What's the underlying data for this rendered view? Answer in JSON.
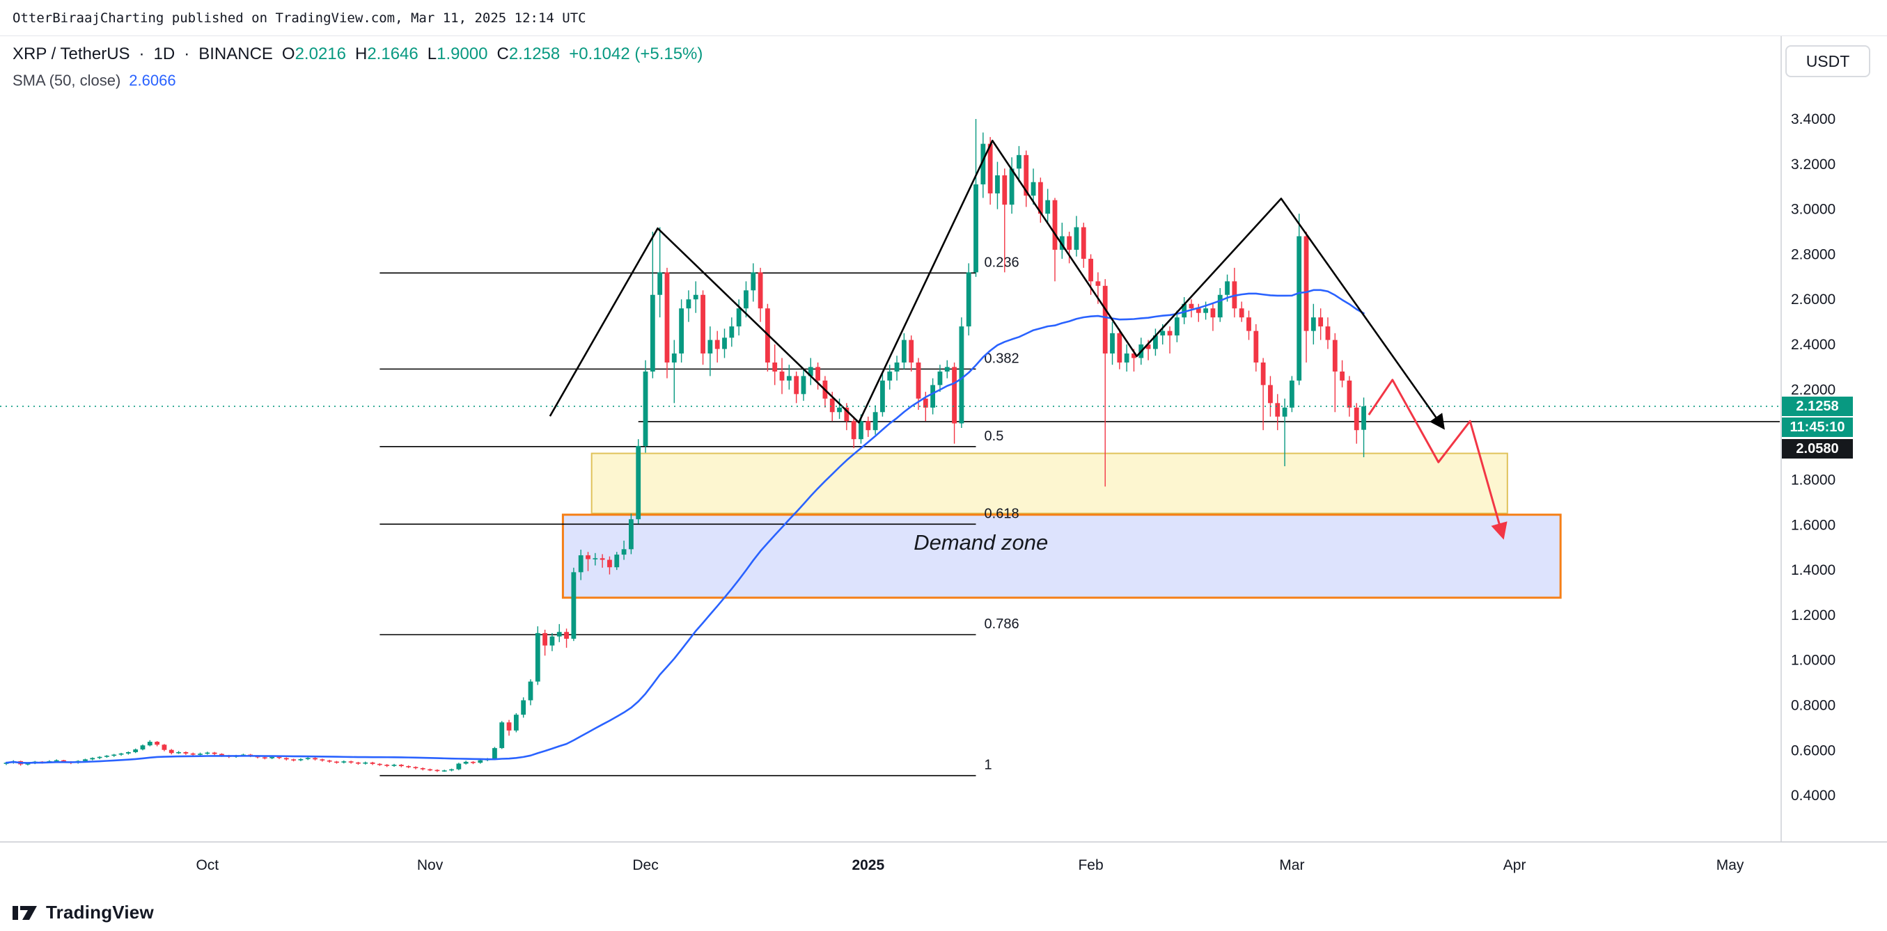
{
  "meta": {
    "publish_line": "OtterBiraajCharting published on TradingView.com, Mar 11, 2025 12:14 UTC"
  },
  "header": {
    "symbol": "XRP / TetherUS",
    "sep": "·",
    "interval": "1D",
    "exchange": "BINANCE",
    "ohlc": {
      "o_label": "O",
      "o": "2.0216",
      "h_label": "H",
      "h": "2.1646",
      "l_label": "L",
      "l": "1.9000",
      "c_label": "C",
      "c": "2.1258",
      "change": "+0.1042 (+5.15%)"
    },
    "indicator": {
      "name": "SMA (50, close)",
      "value": "2.6066"
    },
    "currency_button": "USDT"
  },
  "footer": {
    "brand": "TradingView"
  },
  "colors": {
    "candle_up": "#089981",
    "candle_down": "#F23645",
    "sma": "#2962FF",
    "axis_text": "#131722",
    "level_label_bg": "#15181c",
    "fib_line": "#000000",
    "trend_line": "#000000",
    "zone_yellow_fill": "rgba(250,228,120,0.35)",
    "zone_yellow_border": "#e0c25a",
    "zone_blue_fill": "rgba(98,128,245,0.22)",
    "zone_blue_border": "#f57f17"
  },
  "chart_data": {
    "type": "candlestick",
    "symbol": "XRP/USDT",
    "interval": "1D",
    "start_date": "2024-09-03",
    "sma_period": 50,
    "price_axis": {
      "min": 0.4,
      "max": 3.4,
      "ticks": [
        "3.4000",
        "3.2000",
        "3.0000",
        "2.8000",
        "2.6000",
        "2.4000",
        "2.2000",
        "1.8000",
        "1.6000",
        "1.4000",
        "1.2000",
        "1.0000",
        "0.8000",
        "0.6000",
        "0.4000"
      ]
    },
    "time_axis": [
      {
        "label": "Oct",
        "index": 28
      },
      {
        "label": "Nov",
        "index": 59
      },
      {
        "label": "Dec",
        "index": 89
      },
      {
        "label": "2025",
        "index": 120,
        "bold": true
      },
      {
        "label": "Feb",
        "index": 151
      },
      {
        "label": "Mar",
        "index": 179
      },
      {
        "label": "Apr",
        "index": 210
      },
      {
        "label": "May",
        "index": 240
      }
    ],
    "current_price": {
      "value": "2.1258",
      "price": 2.1258,
      "countdown": "11:45:10"
    },
    "level_line": {
      "value": "2.0580",
      "price": 2.058,
      "start_index": 88,
      "end_index": 247
    },
    "fib": {
      "start_index": 52,
      "end_index": 135,
      "levels": [
        {
          "label": "0.236",
          "price": 2.717
        },
        {
          "label": "0.382",
          "price": 2.291
        },
        {
          "label": "0.5",
          "price": 1.947
        },
        {
          "label": "0.618",
          "price": 1.603
        },
        {
          "label": "0.786",
          "price": 1.113
        },
        {
          "label": "1",
          "price": 0.488
        }
      ]
    },
    "zones": [
      {
        "name": "yellow-zone",
        "start_index": 81.5,
        "end_index": 209,
        "price_top": 1.917,
        "price_bottom": 1.651,
        "fill": "rgba(250,228,120,0.35)",
        "border": "#e0c25a",
        "border_width": 2
      },
      {
        "name": "demand-zone",
        "start_index": 77.5,
        "end_index": 216.4,
        "price_top": 1.645,
        "price_bottom": 1.277,
        "fill": "rgba(98,128,245,0.22)",
        "border": "#f57f17",
        "border_width": 3,
        "label": "Demand zone",
        "label_index": 135.7,
        "label_price": 1.49
      }
    ],
    "trendline": {
      "points": [
        {
          "i": 75.7,
          "p": 2.082
        },
        {
          "i": 90.7,
          "p": 2.915
        },
        {
          "i": 118.7,
          "p": 2.054
        },
        {
          "i": 137.3,
          "p": 3.304
        },
        {
          "i": 157.4,
          "p": 2.348
        },
        {
          "i": 177.5,
          "p": 3.047
        },
        {
          "i": 200.1,
          "p": 2.03
        }
      ]
    },
    "projection": {
      "points": [
        {
          "i": 189.7,
          "p": 2.088
        },
        {
          "i": 193.0,
          "p": 2.243
        },
        {
          "i": 199.4,
          "p": 1.878
        },
        {
          "i": 203.8,
          "p": 2.06
        },
        {
          "i": 208.4,
          "p": 1.545
        }
      ]
    },
    "candles": [
      [
        0.54,
        0.549,
        0.535,
        0.545
      ],
      [
        0.545,
        0.556,
        0.541,
        0.552
      ],
      [
        0.552,
        0.554,
        0.532,
        0.538
      ],
      [
        0.538,
        0.547,
        0.533,
        0.542
      ],
      [
        0.542,
        0.553,
        0.539,
        0.55
      ],
      [
        0.55,
        0.552,
        0.541,
        0.546
      ],
      [
        0.546,
        0.556,
        0.543,
        0.552
      ],
      [
        0.552,
        0.56,
        0.548,
        0.556
      ],
      [
        0.556,
        0.558,
        0.544,
        0.549
      ],
      [
        0.549,
        0.552,
        0.539,
        0.544
      ],
      [
        0.544,
        0.556,
        0.541,
        0.553
      ],
      [
        0.553,
        0.563,
        0.55,
        0.56
      ],
      [
        0.56,
        0.569,
        0.556,
        0.566
      ],
      [
        0.566,
        0.574,
        0.561,
        0.571
      ],
      [
        0.571,
        0.579,
        0.567,
        0.576
      ],
      [
        0.576,
        0.584,
        0.571,
        0.581
      ],
      [
        0.581,
        0.589,
        0.576,
        0.586
      ],
      [
        0.586,
        0.595,
        0.581,
        0.592
      ],
      [
        0.592,
        0.608,
        0.588,
        0.604
      ],
      [
        0.604,
        0.626,
        0.6,
        0.622
      ],
      [
        0.622,
        0.645,
        0.618,
        0.638
      ],
      [
        0.638,
        0.641,
        0.618,
        0.625
      ],
      [
        0.625,
        0.628,
        0.596,
        0.602
      ],
      [
        0.602,
        0.606,
        0.582,
        0.588
      ],
      [
        0.588,
        0.597,
        0.584,
        0.592
      ],
      [
        0.592,
        0.595,
        0.58,
        0.586
      ],
      [
        0.586,
        0.59,
        0.575,
        0.581
      ],
      [
        0.581,
        0.59,
        0.577,
        0.585
      ],
      [
        0.585,
        0.594,
        0.581,
        0.59
      ],
      [
        0.59,
        0.593,
        0.579,
        0.584
      ],
      [
        0.584,
        0.587,
        0.571,
        0.576
      ],
      [
        0.576,
        0.58,
        0.566,
        0.571
      ],
      [
        0.571,
        0.58,
        0.567,
        0.576
      ],
      [
        0.576,
        0.585,
        0.572,
        0.581
      ],
      [
        0.581,
        0.584,
        0.57,
        0.575
      ],
      [
        0.575,
        0.578,
        0.564,
        0.569
      ],
      [
        0.569,
        0.572,
        0.56,
        0.565
      ],
      [
        0.565,
        0.575,
        0.561,
        0.571
      ],
      [
        0.571,
        0.574,
        0.561,
        0.566
      ],
      [
        0.566,
        0.569,
        0.555,
        0.56
      ],
      [
        0.56,
        0.563,
        0.551,
        0.556
      ],
      [
        0.556,
        0.565,
        0.552,
        0.561
      ],
      [
        0.561,
        0.57,
        0.557,
        0.566
      ],
      [
        0.566,
        0.569,
        0.555,
        0.56
      ],
      [
        0.56,
        0.563,
        0.55,
        0.555
      ],
      [
        0.555,
        0.558,
        0.545,
        0.55
      ],
      [
        0.55,
        0.553,
        0.541,
        0.546
      ],
      [
        0.546,
        0.555,
        0.542,
        0.551
      ],
      [
        0.551,
        0.554,
        0.541,
        0.546
      ],
      [
        0.546,
        0.549,
        0.536,
        0.541
      ],
      [
        0.541,
        0.55,
        0.537,
        0.546
      ],
      [
        0.546,
        0.549,
        0.535,
        0.54
      ],
      [
        0.54,
        0.543,
        0.531,
        0.536
      ],
      [
        0.536,
        0.539,
        0.526,
        0.531
      ],
      [
        0.531,
        0.54,
        0.527,
        0.536
      ],
      [
        0.536,
        0.539,
        0.525,
        0.53
      ],
      [
        0.53,
        0.533,
        0.521,
        0.526
      ],
      [
        0.526,
        0.529,
        0.516,
        0.521
      ],
      [
        0.521,
        0.524,
        0.511,
        0.516
      ],
      [
        0.516,
        0.519,
        0.508,
        0.513
      ],
      [
        0.513,
        0.516,
        0.504,
        0.509
      ],
      [
        0.509,
        0.514,
        0.505,
        0.511
      ],
      [
        0.511,
        0.519,
        0.507,
        0.516
      ],
      [
        0.516,
        0.545,
        0.512,
        0.541
      ],
      [
        0.541,
        0.554,
        0.537,
        0.549
      ],
      [
        0.549,
        0.552,
        0.539,
        0.545
      ],
      [
        0.545,
        0.559,
        0.541,
        0.556
      ],
      [
        0.556,
        0.566,
        0.552,
        0.561
      ],
      [
        0.561,
        0.615,
        0.557,
        0.61
      ],
      [
        0.61,
        0.73,
        0.606,
        0.724
      ],
      [
        0.724,
        0.735,
        0.665,
        0.688
      ],
      [
        0.688,
        0.765,
        0.68,
        0.758
      ],
      [
        0.758,
        0.835,
        0.745,
        0.822
      ],
      [
        0.822,
        0.915,
        0.8,
        0.905
      ],
      [
        0.905,
        1.15,
        0.89,
        1.12
      ],
      [
        1.12,
        1.135,
        1.02,
        1.065
      ],
      [
        1.065,
        1.12,
        1.04,
        1.105
      ],
      [
        1.105,
        1.16,
        1.08,
        1.125
      ],
      [
        1.125,
        1.14,
        1.055,
        1.095
      ],
      [
        1.095,
        1.41,
        1.085,
        1.39
      ],
      [
        1.39,
        1.49,
        1.355,
        1.465
      ],
      [
        1.465,
        1.48,
        1.395,
        1.448
      ],
      [
        1.448,
        1.475,
        1.42,
        1.452
      ],
      [
        1.452,
        1.47,
        1.41,
        1.445
      ],
      [
        1.445,
        1.46,
        1.38,
        1.412
      ],
      [
        1.412,
        1.48,
        1.4,
        1.468
      ],
      [
        1.468,
        1.53,
        1.445,
        1.492
      ],
      [
        1.492,
        1.65,
        1.47,
        1.625
      ],
      [
        1.625,
        1.98,
        1.605,
        1.95
      ],
      [
        1.95,
        2.33,
        1.92,
        2.28
      ],
      [
        2.28,
        2.9,
        2.25,
        2.62
      ],
      [
        2.62,
        2.92,
        2.52,
        2.72
      ],
      [
        2.72,
        2.74,
        2.25,
        2.32
      ],
      [
        2.32,
        2.42,
        2.14,
        2.36
      ],
      [
        2.36,
        2.6,
        2.32,
        2.56
      ],
      [
        2.56,
        2.64,
        2.5,
        2.6
      ],
      [
        2.6,
        2.68,
        2.54,
        2.62
      ],
      [
        2.62,
        2.64,
        2.31,
        2.36
      ],
      [
        2.36,
        2.48,
        2.26,
        2.42
      ],
      [
        2.42,
        2.46,
        2.32,
        2.38
      ],
      [
        2.38,
        2.47,
        2.34,
        2.43
      ],
      [
        2.43,
        2.52,
        2.39,
        2.48
      ],
      [
        2.48,
        2.6,
        2.44,
        2.56
      ],
      [
        2.56,
        2.68,
        2.52,
        2.64
      ],
      [
        2.64,
        2.76,
        2.59,
        2.72
      ],
      [
        2.72,
        2.74,
        2.5,
        2.56
      ],
      [
        2.56,
        2.58,
        2.28,
        2.32
      ],
      [
        2.32,
        2.4,
        2.22,
        2.28
      ],
      [
        2.28,
        2.34,
        2.18,
        2.24
      ],
      [
        2.24,
        2.31,
        2.2,
        2.26
      ],
      [
        2.26,
        2.28,
        2.14,
        2.18
      ],
      [
        2.18,
        2.29,
        2.15,
        2.26
      ],
      [
        2.26,
        2.34,
        2.22,
        2.3
      ],
      [
        2.3,
        2.32,
        2.2,
        2.24
      ],
      [
        2.24,
        2.26,
        2.12,
        2.16
      ],
      [
        2.16,
        2.19,
        2.06,
        2.1
      ],
      [
        2.1,
        2.16,
        2.07,
        2.12
      ],
      [
        2.12,
        2.14,
        2.02,
        2.06
      ],
      [
        2.06,
        2.08,
        1.94,
        1.98
      ],
      [
        1.98,
        2.09,
        1.96,
        2.06
      ],
      [
        2.06,
        2.08,
        1.99,
        2.02
      ],
      [
        2.02,
        2.13,
        2.0,
        2.1
      ],
      [
        2.1,
        2.27,
        2.08,
        2.24
      ],
      [
        2.24,
        2.31,
        2.2,
        2.28
      ],
      [
        2.28,
        2.35,
        2.24,
        2.32
      ],
      [
        2.32,
        2.45,
        2.29,
        2.42
      ],
      [
        2.42,
        2.44,
        2.28,
        2.32
      ],
      [
        2.32,
        2.34,
        2.11,
        2.16
      ],
      [
        2.16,
        2.19,
        2.06,
        2.12
      ],
      [
        2.12,
        2.25,
        2.09,
        2.22
      ],
      [
        2.22,
        2.31,
        2.19,
        2.28
      ],
      [
        2.28,
        2.33,
        2.25,
        2.3
      ],
      [
        2.3,
        2.32,
        1.96,
        2.05
      ],
      [
        2.05,
        2.52,
        2.03,
        2.48
      ],
      [
        2.48,
        2.76,
        2.44,
        2.72
      ],
      [
        2.72,
        3.4,
        2.7,
        3.11
      ],
      [
        3.11,
        3.34,
        3.05,
        3.29
      ],
      [
        3.29,
        3.32,
        3.02,
        3.07
      ],
      [
        3.07,
        3.21,
        3.0,
        3.15
      ],
      [
        3.15,
        3.18,
        2.72,
        3.02
      ],
      [
        3.02,
        3.23,
        2.98,
        3.18
      ],
      [
        3.18,
        3.28,
        3.12,
        3.24
      ],
      [
        3.24,
        3.26,
        3.01,
        3.06
      ],
      [
        3.06,
        3.18,
        3.02,
        3.12
      ],
      [
        3.12,
        3.14,
        2.94,
        2.98
      ],
      [
        2.98,
        3.09,
        2.94,
        3.04
      ],
      [
        3.04,
        3.05,
        2.68,
        2.82
      ],
      [
        2.82,
        2.94,
        2.78,
        2.88
      ],
      [
        2.88,
        2.9,
        2.76,
        2.82
      ],
      [
        2.82,
        2.97,
        2.79,
        2.92
      ],
      [
        2.92,
        2.94,
        2.74,
        2.78
      ],
      [
        2.78,
        2.8,
        2.62,
        2.68
      ],
      [
        2.68,
        2.72,
        2.58,
        2.66
      ],
      [
        2.66,
        2.69,
        1.77,
        2.36
      ],
      [
        2.36,
        2.5,
        2.31,
        2.45
      ],
      [
        2.45,
        2.47,
        2.29,
        2.32
      ],
      [
        2.32,
        2.4,
        2.28,
        2.36
      ],
      [
        2.36,
        2.38,
        2.28,
        2.34
      ],
      [
        2.34,
        2.43,
        2.31,
        2.4
      ],
      [
        2.4,
        2.42,
        2.33,
        2.38
      ],
      [
        2.38,
        2.47,
        2.35,
        2.44
      ],
      [
        2.44,
        2.49,
        2.4,
        2.46
      ],
      [
        2.46,
        2.48,
        2.36,
        2.44
      ],
      [
        2.44,
        2.55,
        2.41,
        2.52
      ],
      [
        2.52,
        2.61,
        2.49,
        2.58
      ],
      [
        2.58,
        2.6,
        2.52,
        2.56
      ],
      [
        2.56,
        2.58,
        2.5,
        2.54
      ],
      [
        2.54,
        2.59,
        2.51,
        2.56
      ],
      [
        2.56,
        2.58,
        2.46,
        2.52
      ],
      [
        2.52,
        2.65,
        2.5,
        2.62
      ],
      [
        2.62,
        2.71,
        2.59,
        2.68
      ],
      [
        2.68,
        2.74,
        2.52,
        2.56
      ],
      [
        2.56,
        2.59,
        2.5,
        2.52
      ],
      [
        2.52,
        2.55,
        2.42,
        2.46
      ],
      [
        2.46,
        2.49,
        2.28,
        2.32
      ],
      [
        2.32,
        2.34,
        2.02,
        2.22
      ],
      [
        2.22,
        2.26,
        2.08,
        2.14
      ],
      [
        2.14,
        2.18,
        2.02,
        2.08
      ],
      [
        2.08,
        2.16,
        1.86,
        2.12
      ],
      [
        2.12,
        2.26,
        2.1,
        2.24
      ],
      [
        2.24,
        2.98,
        2.22,
        2.88
      ],
      [
        2.88,
        2.9,
        2.32,
        2.46
      ],
      [
        2.46,
        2.58,
        2.4,
        2.52
      ],
      [
        2.52,
        2.56,
        2.42,
        2.48
      ],
      [
        2.48,
        2.52,
        2.38,
        2.42
      ],
      [
        2.42,
        2.45,
        2.1,
        2.28
      ],
      [
        2.28,
        2.33,
        2.21,
        2.24
      ],
      [
        2.24,
        2.26,
        2.08,
        2.12
      ],
      [
        2.12,
        2.14,
        1.96,
        2.02
      ],
      [
        2.0216,
        2.1646,
        1.9,
        2.1258
      ]
    ]
  }
}
